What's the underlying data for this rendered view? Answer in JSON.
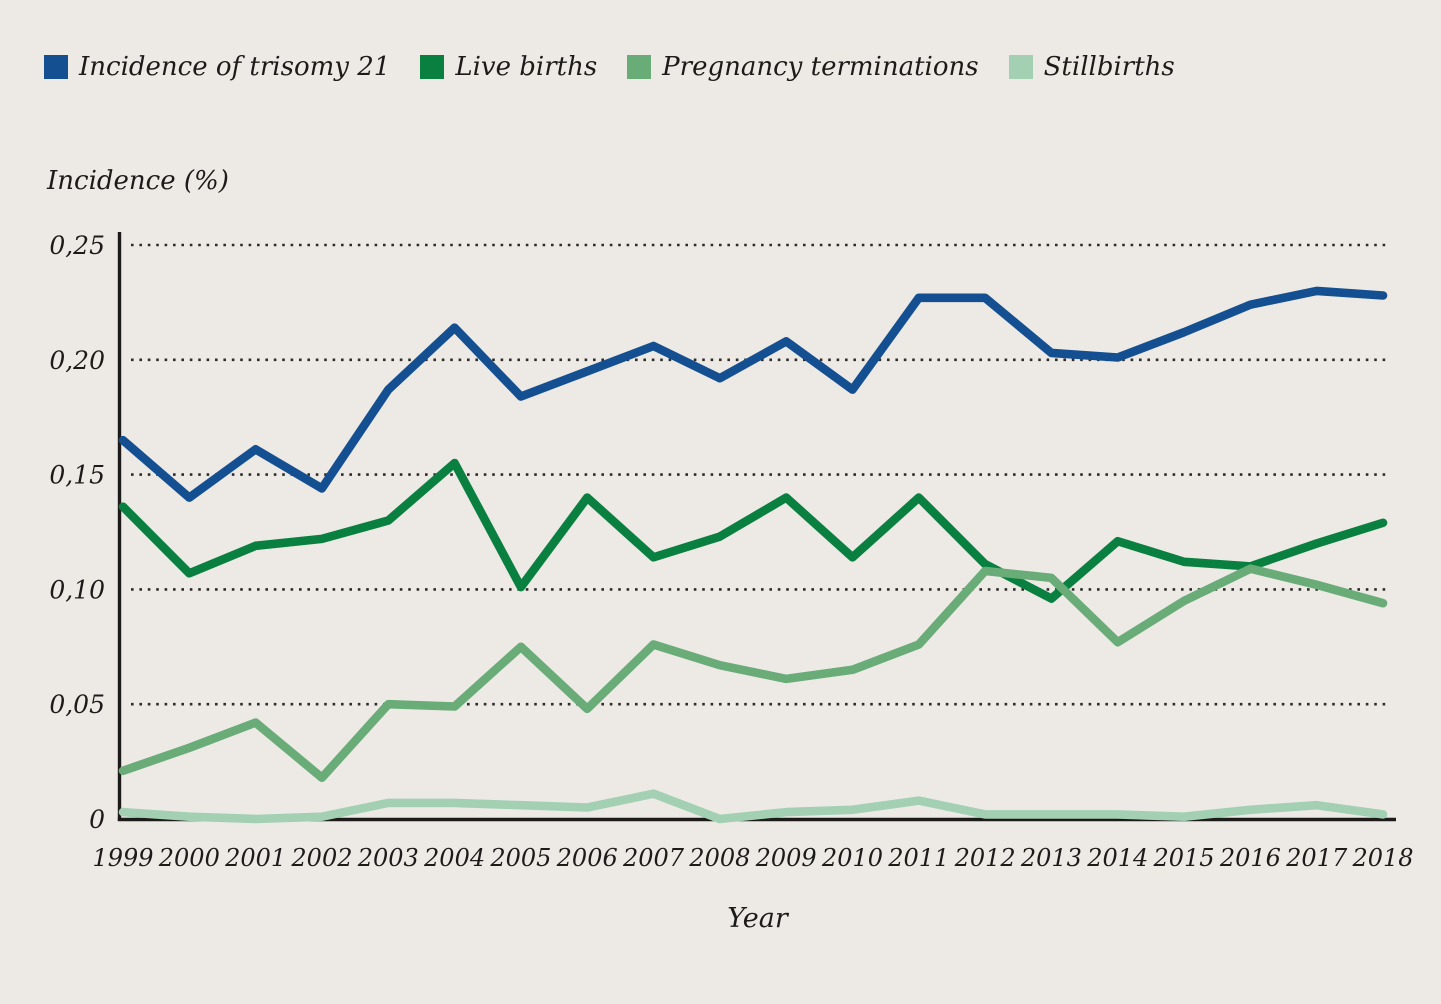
{
  "page": {
    "background": "#edeae6",
    "text_color": "#1d1b19",
    "grid_color": "#2e2c2a",
    "axis_color": "#1d1b19"
  },
  "legend": {
    "items": [
      {
        "label": "Incidence of trisomy 21",
        "color": "#145091"
      },
      {
        "label": "Live births",
        "color": "#0a8040"
      },
      {
        "label": "Pregnancy terminations",
        "color": "#69ac78"
      },
      {
        "label": "Stillbirths",
        "color": "#a3d0b3"
      }
    ]
  },
  "chart_data": {
    "type": "line",
    "title": "",
    "xlabel": "Year",
    "ylabel": "Incidence (%)",
    "x": [
      1999,
      2000,
      2001,
      2002,
      2003,
      2004,
      2005,
      2006,
      2007,
      2008,
      2009,
      2010,
      2011,
      2012,
      2013,
      2014,
      2015,
      2016,
      2017,
      2018
    ],
    "x_tick_labels": [
      "1999",
      "2000",
      "2001",
      "2002",
      "2003",
      "2004",
      "2005",
      "2006",
      "2007",
      "2008",
      "2009",
      "2010",
      "2011",
      "2012",
      "2013",
      "2014",
      "2015",
      "2016",
      "2017",
      "2018"
    ],
    "y_ticks": [
      0,
      0.05,
      0.1,
      0.15,
      0.2,
      0.25
    ],
    "y_tick_labels": [
      "0",
      "0,05",
      "0,10",
      "0,15",
      "0,20",
      "0,25"
    ],
    "ylim": [
      0,
      0.25
    ],
    "decimal_separator": ",",
    "grid": "horizontal-dotted",
    "legend_position": "top-left",
    "series": [
      {
        "name": "Incidence of trisomy 21",
        "color": "#145091",
        "values": [
          0.165,
          0.14,
          0.161,
          0.144,
          0.187,
          0.214,
          0.184,
          0.195,
          0.206,
          0.192,
          0.208,
          0.187,
          0.227,
          0.227,
          0.203,
          0.201,
          0.212,
          0.224,
          0.23,
          0.228
        ]
      },
      {
        "name": "Live births",
        "color": "#0a8040",
        "values": [
          0.136,
          0.107,
          0.119,
          0.122,
          0.13,
          0.155,
          0.101,
          0.14,
          0.114,
          0.123,
          0.14,
          0.114,
          0.14,
          0.111,
          0.096,
          0.121,
          0.112,
          0.11,
          0.12,
          0.129
        ]
      },
      {
        "name": "Pregnancy terminations",
        "color": "#69ac78",
        "values": [
          0.021,
          0.031,
          0.042,
          0.018,
          0.05,
          0.049,
          0.075,
          0.048,
          0.076,
          0.067,
          0.061,
          0.065,
          0.076,
          0.108,
          0.105,
          0.077,
          0.095,
          0.109,
          0.102,
          0.094
        ]
      },
      {
        "name": "Stillbirths",
        "color": "#a3d0b3",
        "values": [
          0.003,
          0.001,
          0.0,
          0.001,
          0.007,
          0.007,
          0.006,
          0.005,
          0.011,
          0.0,
          0.003,
          0.004,
          0.008,
          0.002,
          0.002,
          0.002,
          0.001,
          0.004,
          0.006,
          0.002
        ]
      }
    ]
  }
}
